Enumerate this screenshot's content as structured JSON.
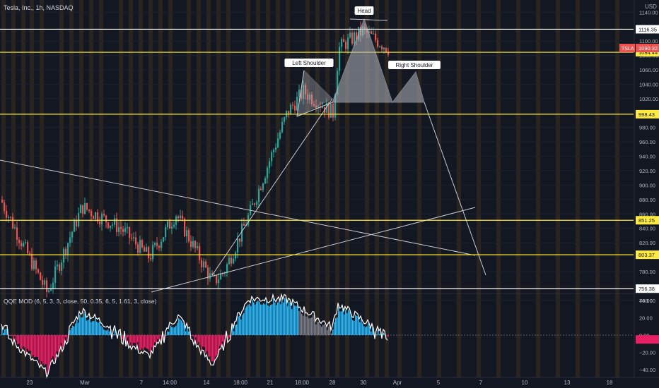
{
  "header": {
    "symbol_line": "Tesla, Inc., 1h, NASDAQ",
    "currency": "USD"
  },
  "price_axis": {
    "ticks": [
      1140,
      1100,
      1080,
      1060,
      1040,
      1020,
      980,
      960,
      940,
      920,
      900,
      880,
      860,
      840,
      820,
      780,
      760,
      740
    ],
    "tick_labels": [
      "1140.00",
      "1100.00",
      "1080.00",
      "1060.00",
      "1040.00",
      "1020.00",
      "980.00",
      "960.00",
      "940.00",
      "920.00",
      "900.00",
      "880.00",
      "860.00",
      "840.00",
      "820.00",
      "780.00",
      "760.00",
      "740.00"
    ]
  },
  "levels": [
    {
      "value": 1116.35,
      "label": "1116.35",
      "color": "#ffffff"
    },
    {
      "value": 1084.44,
      "label": "1084.44",
      "color": "#ffeb3b"
    },
    {
      "value": 998.43,
      "label": "998.43",
      "color": "#ffeb3b"
    },
    {
      "value": 851.25,
      "label": "851.25",
      "color": "#ffeb3b"
    },
    {
      "value": 803.37,
      "label": "803.37",
      "color": "#ffeb3b"
    },
    {
      "value": 756.38,
      "label": "756.38",
      "color": "#ffffff"
    }
  ],
  "current_price": {
    "ticker": "TSLA",
    "value": 1090.32,
    "label": "1090.32",
    "color": "#ef5350"
  },
  "annotations": {
    "head": "Head",
    "left_shoulder": "Left Shoulder",
    "right_shoulder": "Right Shoulder"
  },
  "indicator": {
    "title": "QQE MOD (6, 5, 3, 3, close, 50, 0.35, 6, 5, 1.61, 3, close)",
    "ticks": [
      40,
      20,
      0,
      -20,
      -40
    ],
    "tick_labels": [
      "40.00",
      "20.00",
      "0.00",
      "−20.00",
      "−40.00"
    ]
  },
  "time_axis": {
    "labels": [
      "23",
      "Mar",
      "7",
      "14:00",
      "14",
      "18:00",
      "21",
      "18:00",
      "28",
      "30",
      "Apr",
      "5",
      "7",
      "10",
      "13",
      "18"
    ]
  },
  "colors": {
    "background": "#131722",
    "up": "#26a69a",
    "down": "#ef5350",
    "qqe_up": "#29b6f6",
    "qqe_down": "#e91e63",
    "qqe_neutral": "#787b86",
    "pattern_fill": "#b2b5be"
  },
  "chart_data": [
    {
      "type": "candlestick",
      "title": "Tesla, Inc., 1h, NASDAQ",
      "ylim": [
        735,
        1150
      ],
      "key_points": [
        {
          "x": "Feb 18",
          "y": 880
        },
        {
          "x": "Feb 21",
          "y": 820
        },
        {
          "x": "Feb 24",
          "y": 750
        },
        {
          "x": "Mar 1",
          "y": 870
        },
        {
          "x": "Mar 4",
          "y": 840
        },
        {
          "x": "Mar 7",
          "y": 800
        },
        {
          "x": "Mar 9",
          "y": 860
        },
        {
          "x": "Mar 14",
          "y": 765
        },
        {
          "x": "Mar 16",
          "y": 780
        },
        {
          "x": "Mar 18",
          "y": 860
        },
        {
          "x": "Mar 22",
          "y": 1000
        },
        {
          "x": "Mar 23",
          "y": 1030
        },
        {
          "x": "Mar 24",
          "y": 1000
        },
        {
          "x": "Mar 28",
          "y": 1090
        },
        {
          "x": "Mar 29",
          "y": 1114
        },
        {
          "x": "Mar 31",
          "y": 1090
        }
      ],
      "horizontal_levels": [
        1116.35,
        1084.44,
        998.43,
        851.25,
        803.37,
        756.38
      ]
    },
    {
      "type": "histogram",
      "title": "QQE MOD",
      "ylim": [
        -45,
        45
      ],
      "key_points": [
        {
          "x": "Feb 18",
          "y": 10
        },
        {
          "x": "Feb 24",
          "y": -40
        },
        {
          "x": "Mar 1",
          "y": 25
        },
        {
          "x": "Mar 7",
          "y": -20
        },
        {
          "x": "Mar 10",
          "y": 18
        },
        {
          "x": "Mar 14",
          "y": -30
        },
        {
          "x": "Mar 18",
          "y": 38
        },
        {
          "x": "Mar 22",
          "y": 38
        },
        {
          "x": "Mar 24",
          "y": 5
        },
        {
          "x": "Mar 28",
          "y": 32
        },
        {
          "x": "Mar 31",
          "y": -5
        }
      ]
    }
  ]
}
